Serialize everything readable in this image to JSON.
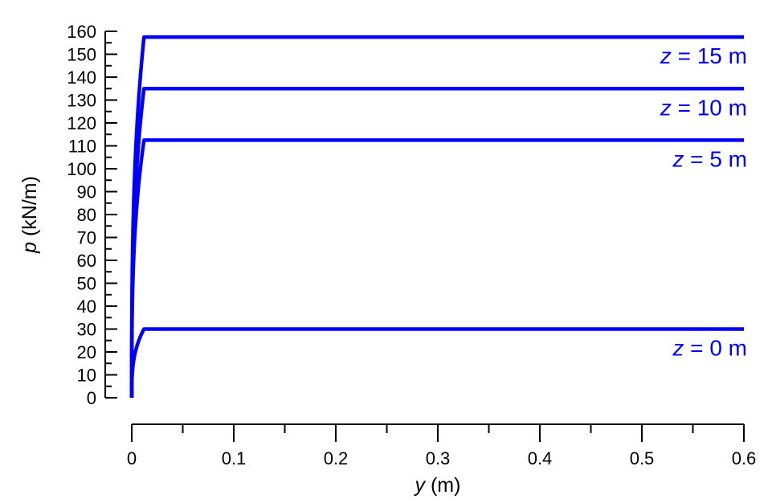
{
  "chart_data": {
    "type": "line",
    "title": "",
    "xlabel_var": "y",
    "xlabel_unit": " (m)",
    "ylabel_var": "p",
    "ylabel_unit": " (kN/m)",
    "xlim": [
      0,
      0.6
    ],
    "ylim": [
      0,
      160
    ],
    "x_major_ticks": [
      0,
      0.1,
      0.2,
      0.3,
      0.4,
      0.5,
      0.6
    ],
    "x_tick_labels": [
      "0",
      "0.1",
      "0.2",
      "0.3",
      "0.4",
      "0.5",
      "0.6"
    ],
    "x_minor_ticks": [
      0.05,
      0.15,
      0.25,
      0.35,
      0.45,
      0.55
    ],
    "y_ticks": [
      0,
      10,
      20,
      30,
      40,
      50,
      60,
      70,
      80,
      90,
      100,
      110,
      120,
      130,
      140,
      150,
      160
    ],
    "y_tick_labels": [
      "0",
      "10",
      "20",
      "30",
      "40",
      "50",
      "60",
      "70",
      "80",
      "90",
      "100",
      "110",
      "120",
      "130",
      "140",
      "150",
      "160"
    ],
    "y_minor_ticks": [
      5,
      15,
      25,
      35,
      45,
      55,
      65,
      75,
      85,
      95,
      105,
      115,
      125,
      135,
      145,
      155
    ],
    "grid": false,
    "line_color": "#0000ff",
    "series": [
      {
        "label_var": "z",
        "label_rest": " = 0 m",
        "pult": 30,
        "y50": 0.0015,
        "yu": 0.2,
        "x_end": 0.6
      },
      {
        "label_var": "z",
        "label_rest": " = 5 m",
        "pult": 112.5,
        "y50": 0.0015,
        "yu": 0.2,
        "x_end": 0.6
      },
      {
        "label_var": "z",
        "label_rest": " = 10 m",
        "pult": 135,
        "y50": 0.0015,
        "yu": 0.2,
        "x_end": 0.6
      },
      {
        "label_var": "z",
        "label_rest": " = 15 m",
        "pult": 157.5,
        "y50": 0.0015,
        "yu": 0.2,
        "x_end": 0.6
      }
    ]
  }
}
